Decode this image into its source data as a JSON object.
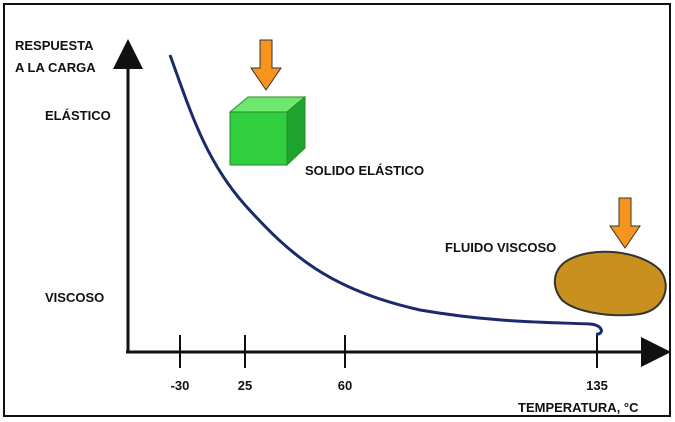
{
  "axes": {
    "y_title": [
      "RESPUESTA",
      "A LA CARGA"
    ],
    "y_levels": [
      "ELÁSTICO",
      "VISCOSO"
    ],
    "x_ticks": [
      "-30",
      "25",
      "60",
      "135"
    ],
    "x_title": "TEMPERATURA, °C"
  },
  "annotations": {
    "solid": "SOLIDO ELÁSTICO",
    "fluid": "FLUIDO VISCOSO"
  }
}
